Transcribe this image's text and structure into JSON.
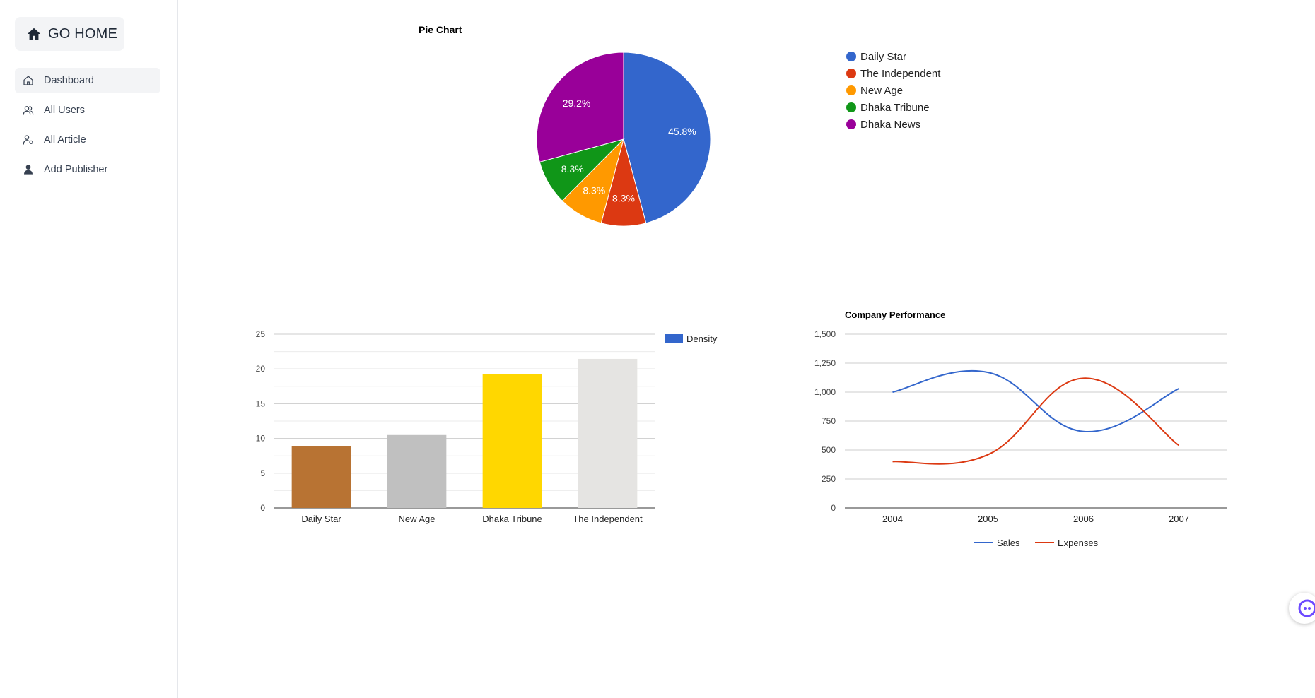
{
  "sidebar": {
    "home_label": "GO HOME",
    "items": [
      {
        "label": "Dashboard",
        "icon": "home-outline-icon",
        "active": true
      },
      {
        "label": "All Users",
        "icon": "users-icon",
        "active": false
      },
      {
        "label": "All Article",
        "icon": "user-cog-icon",
        "active": false
      },
      {
        "label": "Add Publisher",
        "icon": "user-solid-icon",
        "active": false
      }
    ]
  },
  "chart_data": [
    {
      "type": "pie",
      "title": "Pie Chart",
      "categories": [
        "Daily Star",
        "The Independent",
        "New Age",
        "Dhaka Tribune",
        "Dhaka News"
      ],
      "values": [
        45.8,
        8.3,
        8.3,
        8.3,
        29.2
      ],
      "labels": [
        "45.8%",
        "8.3%",
        "8.3%",
        "8.3%",
        "29.2%"
      ],
      "colors": [
        "#3366cc",
        "#dc3912",
        "#ff9900",
        "#109618",
        "#990099"
      ],
      "legend": "right"
    },
    {
      "type": "bar",
      "title": "",
      "categories": [
        "Daily Star",
        "New Age",
        "Dhaka Tribune",
        "The Independent"
      ],
      "series": [
        {
          "name": "Density",
          "values": [
            8.94,
            10.49,
            19.3,
            21.45
          ]
        }
      ],
      "bar_colors": [
        "#b87333",
        "#c0c0c0",
        "#ffd700",
        "#e5e4e2"
      ],
      "legend_color": "#3366cc",
      "ylim": [
        0,
        25
      ],
      "yticks": [
        "0",
        "5",
        "10",
        "15",
        "20",
        "25"
      ],
      "grid": true,
      "legend": "right"
    },
    {
      "type": "line",
      "title": "Company Performance",
      "x": [
        "2004",
        "2005",
        "2006",
        "2007"
      ],
      "series": [
        {
          "name": "Sales",
          "values": [
            1000,
            1170,
            660,
            1030
          ],
          "color": "#3366cc"
        },
        {
          "name": "Expenses",
          "values": [
            400,
            460,
            1120,
            540
          ],
          "color": "#dc3912"
        }
      ],
      "ylim": [
        0,
        1500
      ],
      "yticks": [
        "0",
        "250",
        "500",
        "750",
        "1,000",
        "1,250",
        "1,500"
      ],
      "grid": true,
      "curve": "smooth",
      "legend": "bottom"
    }
  ]
}
